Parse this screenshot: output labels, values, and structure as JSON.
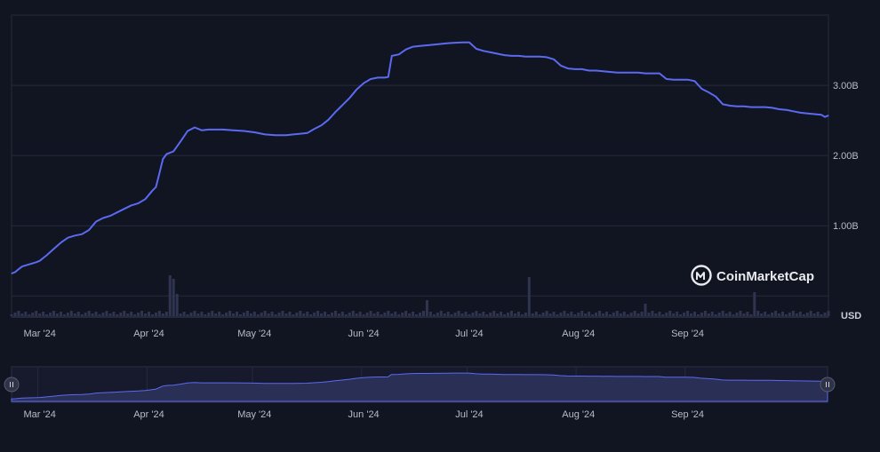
{
  "chart_data": {
    "type": "line",
    "title": "",
    "xlabel": "",
    "ylabel": "",
    "currency_label": "USD",
    "y_tick_labels": [
      "1.00B",
      "2.00B",
      "3.00B"
    ],
    "y_ticks": [
      1.0,
      2.0,
      3.0
    ],
    "ylim": [
      -0.3,
      4.0
    ],
    "x_tick_labels": [
      "Mar '24",
      "Apr '24",
      "May '24",
      "Jun '24",
      "Jul '24",
      "Aug '24",
      "Sep '24"
    ],
    "x_tick_days": [
      8,
      39,
      69,
      100,
      130,
      161,
      192
    ],
    "xlim_days": [
      0,
      232
    ],
    "grid": true,
    "watermark": "CoinMarketCap",
    "series": [
      {
        "color": "#5b6af0",
        "x": [
          0,
          1,
          2,
          3,
          5,
          7,
          8,
          10,
          12,
          14,
          16,
          18,
          20,
          22,
          23,
          24,
          26,
          28,
          30,
          32,
          34,
          36,
          38,
          40,
          41,
          42,
          43,
          44,
          46,
          48,
          50,
          52,
          54,
          56,
          58,
          60,
          63,
          66,
          69,
          72,
          75,
          78,
          80,
          82,
          84,
          86,
          88,
          90,
          92,
          94,
          96,
          98,
          100,
          102,
          104,
          106,
          107,
          108,
          110,
          112,
          114,
          116,
          118,
          120,
          124,
          128,
          130,
          132,
          134,
          136,
          138,
          140,
          142,
          144,
          146,
          148,
          150,
          152,
          154,
          156,
          158,
          160,
          162,
          164,
          166,
          168,
          170,
          172,
          174,
          176,
          178,
          180,
          182,
          184,
          186,
          188,
          190,
          192,
          194,
          196,
          198,
          200,
          202,
          204,
          206,
          208,
          210,
          212,
          214,
          216,
          218,
          220,
          222,
          224,
          226,
          228,
          230,
          231,
          232
        ],
        "y": [
          0.32,
          0.34,
          0.38,
          0.42,
          0.45,
          0.48,
          0.5,
          0.58,
          0.67,
          0.76,
          0.83,
          0.86,
          0.88,
          0.94,
          1.0,
          1.06,
          1.11,
          1.14,
          1.19,
          1.24,
          1.29,
          1.32,
          1.38,
          1.5,
          1.55,
          1.75,
          1.95,
          2.02,
          2.06,
          2.2,
          2.35,
          2.4,
          2.36,
          2.37,
          2.37,
          2.37,
          2.36,
          2.35,
          2.33,
          2.3,
          2.29,
          2.29,
          2.3,
          2.31,
          2.32,
          2.38,
          2.43,
          2.51,
          2.62,
          2.72,
          2.82,
          2.94,
          3.03,
          3.09,
          3.11,
          3.11,
          3.12,
          3.42,
          3.44,
          3.51,
          3.55,
          3.56,
          3.57,
          3.58,
          3.6,
          3.61,
          3.61,
          3.52,
          3.49,
          3.47,
          3.45,
          3.43,
          3.42,
          3.42,
          3.41,
          3.41,
          3.41,
          3.4,
          3.37,
          3.28,
          3.24,
          3.23,
          3.23,
          3.21,
          3.21,
          3.2,
          3.19,
          3.18,
          3.18,
          3.18,
          3.18,
          3.17,
          3.17,
          3.17,
          3.09,
          3.08,
          3.08,
          3.08,
          3.06,
          2.95,
          2.9,
          2.84,
          2.73,
          2.71,
          2.7,
          2.7,
          2.69,
          2.69,
          2.69,
          2.68,
          2.66,
          2.65,
          2.63,
          2.61,
          2.6,
          2.59,
          2.58,
          2.55,
          2.57
        ]
      }
    ],
    "volume_spikes_days": [
      45,
      46,
      47,
      118,
      147,
      180,
      211
    ],
    "navigator": {
      "x_tick_labels": [
        "Mar '24",
        "Apr '24",
        "May '24",
        "Jun '24",
        "Jul '24",
        "Aug '24",
        "Sep '24"
      ]
    }
  }
}
